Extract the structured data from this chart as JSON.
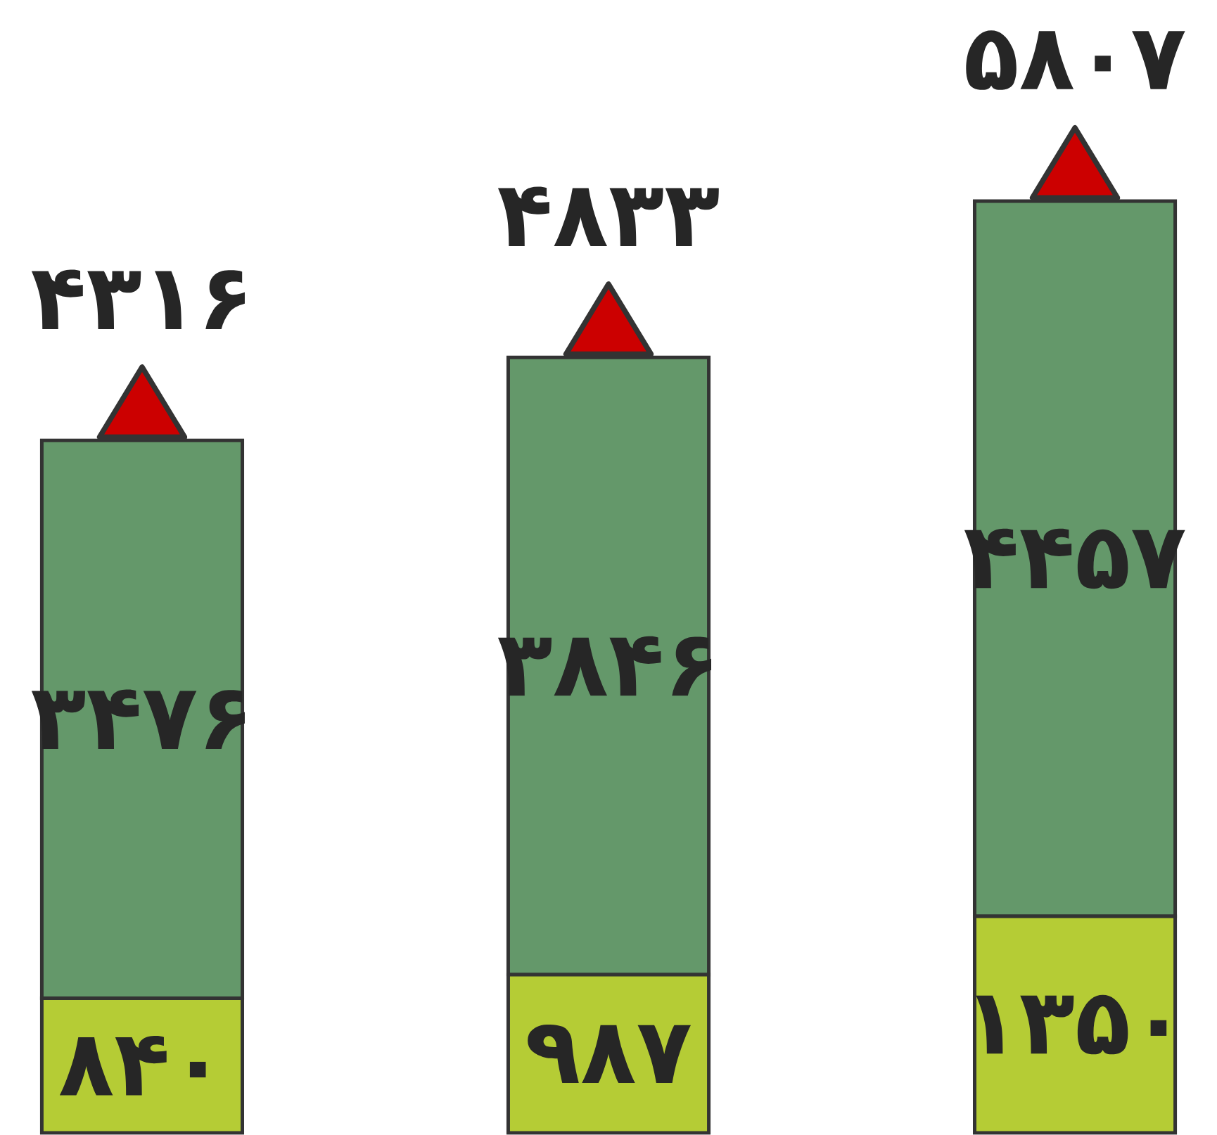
{
  "chart_data": {
    "type": "bar",
    "stacked": true,
    "categories": [
      null,
      null,
      null
    ],
    "series": [
      {
        "color": "#b5cc35",
        "values": [
          840,
          987,
          1350
        ],
        "value_labels": [
          "۸۴۰",
          "۹۸۷",
          "۱۳۵۰"
        ]
      },
      {
        "color": "#64986a",
        "values": [
          3476,
          3846,
          4457
        ],
        "value_labels": [
          "۳۴۷۶",
          "۳۸۴۶",
          "۴۴۵۷"
        ]
      }
    ],
    "totals": [
      "۴۳۱۶",
      "۴۸۳۳",
      "۵۸۰۷"
    ]
  }
}
